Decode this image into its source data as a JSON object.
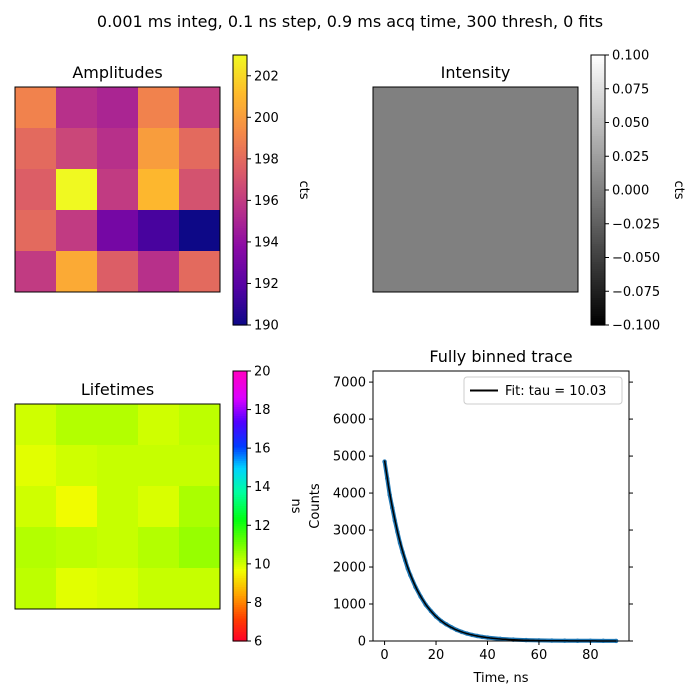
{
  "figure": {
    "suptitle": "0.001 ms integ, 0.1 ns step, 0.9 ms acq time, 300 thresh, 0 fits"
  },
  "chart_data": [
    {
      "type": "heatmap",
      "title": "Amplitudes",
      "colormap": "plasma",
      "colorbar_label": "cts",
      "vmin": 190,
      "vmax": 203,
      "colorbar_ticks": [
        190,
        192,
        194,
        196,
        198,
        200,
        202
      ],
      "values": [
        [
          199,
          195.5,
          195,
          199,
          196
        ],
        [
          198,
          196.5,
          195.5,
          200,
          198
        ],
        [
          197.5,
          203,
          196,
          201,
          197
        ],
        [
          198,
          196,
          193,
          191.5,
          190
        ],
        [
          196,
          200.5,
          197.5,
          195.5,
          198
        ]
      ]
    },
    {
      "type": "heatmap",
      "title": "Intensity",
      "colormap": "gray",
      "colorbar_label": "cts",
      "vmin": -0.1,
      "vmax": 0.1,
      "colorbar_ticks": [
        -0.1,
        -0.075,
        -0.05,
        -0.025,
        0.0,
        0.025,
        0.05,
        0.075,
        0.1
      ],
      "colorbar_tick_labels": [
        "−0.100",
        "−0.075",
        "−0.050",
        "−0.025",
        "0.000",
        "0.025",
        "0.050",
        "0.075",
        "0.100"
      ],
      "values": [
        [
          0,
          0,
          0,
          0,
          0
        ],
        [
          0,
          0,
          0,
          0,
          0
        ],
        [
          0,
          0,
          0,
          0,
          0
        ],
        [
          0,
          0,
          0,
          0,
          0
        ],
        [
          0,
          0,
          0,
          0,
          0
        ]
      ]
    },
    {
      "type": "heatmap",
      "title": "Lifetimes",
      "colormap": "gist_rainbow",
      "colorbar_label": "ns",
      "vmin": 6,
      "vmax": 20,
      "colorbar_ticks": [
        6,
        8,
        10,
        12,
        14,
        16,
        18,
        20
      ],
      "values": [
        [
          10.0,
          10.3,
          10.3,
          10.0,
          10.2
        ],
        [
          9.8,
          10.0,
          10.1,
          10.1,
          10.1
        ],
        [
          10.0,
          9.6,
          10.1,
          9.9,
          10.4
        ],
        [
          10.3,
          10.2,
          10.1,
          10.3,
          10.6
        ],
        [
          10.2,
          9.8,
          9.9,
          10.1,
          10.1
        ]
      ]
    },
    {
      "type": "line",
      "title": "Fully binned trace",
      "xlabel": "Time, ns",
      "ylabel": "Counts",
      "xlim": [
        -4.5,
        95
      ],
      "ylim": [
        0,
        7300
      ],
      "xticks": [
        0,
        20,
        40,
        60,
        80
      ],
      "yticks": [
        0,
        1000,
        2000,
        3000,
        4000,
        5000,
        6000,
        7000
      ],
      "legend_position": "upper right",
      "series": [
        {
          "kind": "data",
          "color": "#1f77b4",
          "x": [
            0,
            1,
            2,
            3,
            4,
            5,
            6,
            7,
            8,
            9,
            10,
            12,
            14,
            16,
            18,
            20,
            22,
            24,
            26,
            28,
            30,
            32,
            34,
            36,
            38,
            40,
            45,
            50,
            55,
            60,
            65,
            70,
            75,
            80,
            85,
            90
          ],
          "y": [
            4850,
            4400,
            3950,
            3600,
            3250,
            2950,
            2650,
            2400,
            2180,
            1960,
            1780,
            1460,
            1200,
            980,
            810,
            660,
            540,
            450,
            370,
            300,
            245,
            200,
            165,
            135,
            110,
            92,
            58,
            37,
            24,
            16,
            11,
            8,
            6,
            5,
            4,
            3
          ]
        },
        {
          "kind": "fit",
          "name": "Fit: tau = 10.03",
          "color": "#000000",
          "amplitude": 4880,
          "tau": 10.03,
          "x_range": [
            0,
            90
          ]
        }
      ]
    }
  ]
}
